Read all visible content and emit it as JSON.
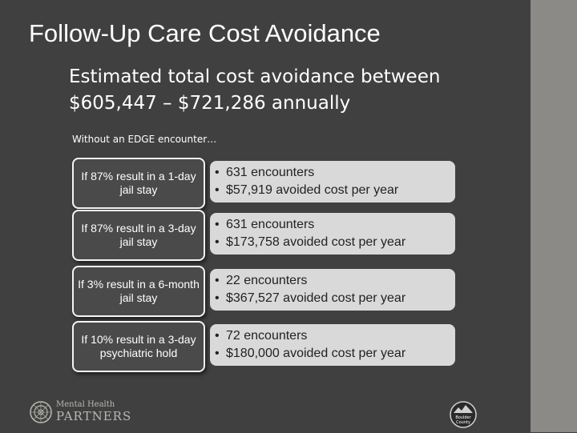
{
  "title": "Follow-Up Care Cost Avoidance",
  "subtitle": "Estimated total cost avoidance between $605,447 – $721,286 annually",
  "intro": "Without an EDGE encounter…",
  "rows": [
    {
      "condition": "If 87% result in a 1-day jail stay",
      "encounters": "631 encounters",
      "avoided": "$57,919 avoided cost per year"
    },
    {
      "condition": "If 87% result in a 3-day jail stay",
      "encounters": "631 encounters",
      "avoided": "$173,758 avoided cost per year"
    },
    {
      "condition": "If 3% result in a 6-month jail stay",
      "encounters": "22 encounters",
      "avoided": "$367,527 avoided cost per year"
    },
    {
      "condition": "If 10% result in a 3-day psychiatric hold",
      "encounters": "72 encounters",
      "avoided": "$180,000 avoided cost per year"
    }
  ],
  "logos": {
    "left": {
      "line1": "Mental Health",
      "line2": "PARTNERS"
    },
    "right": {
      "line1": "Boulder",
      "line2": "County"
    }
  },
  "colors": {
    "background": "#404040",
    "strip": "#8c8a86",
    "result_box": "#d9d9d9"
  }
}
